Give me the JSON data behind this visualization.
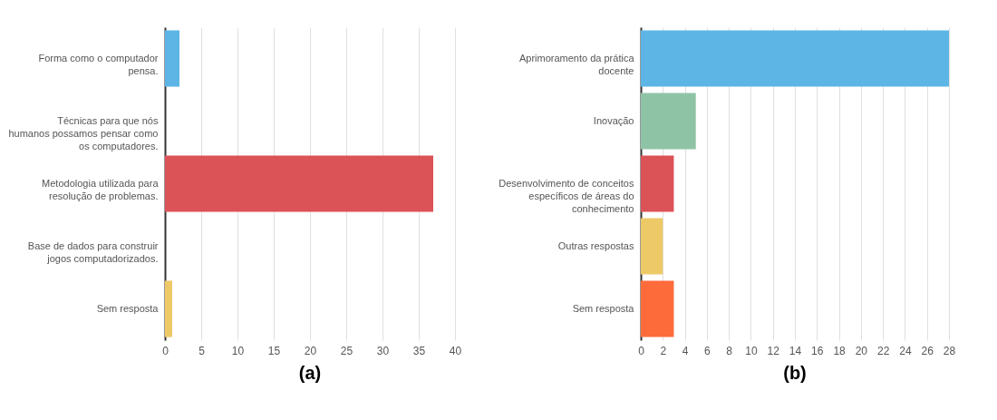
{
  "chart_data": [
    {
      "type": "bar",
      "orientation": "horizontal",
      "title": "(a)",
      "categories": [
        "Forma como o computador pensa.",
        "Técnicas para que nós humanos possamos pensar como os computadores.",
        "Metodologia utilizada para resolução de problemas.",
        "Base de dados para construir jogos computadorizados.",
        "Sem resposta"
      ],
      "values": [
        2,
        0,
        37,
        0,
        1
      ],
      "colors": [
        "#5db5e5",
        "#8fc3a6",
        "#db5257",
        "#fd6b3a",
        "#edc968"
      ],
      "xlim": [
        0,
        40
      ],
      "xticks": [
        0,
        5,
        10,
        15,
        20,
        25,
        30,
        35,
        40
      ],
      "grid": "x"
    },
    {
      "type": "bar",
      "orientation": "horizontal",
      "title": "(b)",
      "categories": [
        "Aprimoramento da prática docente",
        "Inovação",
        "Desenvolvimento de conceitos específicos de áreas do conhecimento",
        "Outras respostas",
        "Sem resposta"
      ],
      "values": [
        28,
        5,
        3,
        2,
        3
      ],
      "colors": [
        "#5db5e5",
        "#8fc3a6",
        "#db5257",
        "#edc968",
        "#fd6b3a"
      ],
      "xlim": [
        0,
        28
      ],
      "xticks": [
        0,
        2,
        4,
        6,
        8,
        10,
        12,
        14,
        16,
        18,
        20,
        22,
        24,
        26,
        28
      ],
      "grid": "x"
    }
  ]
}
